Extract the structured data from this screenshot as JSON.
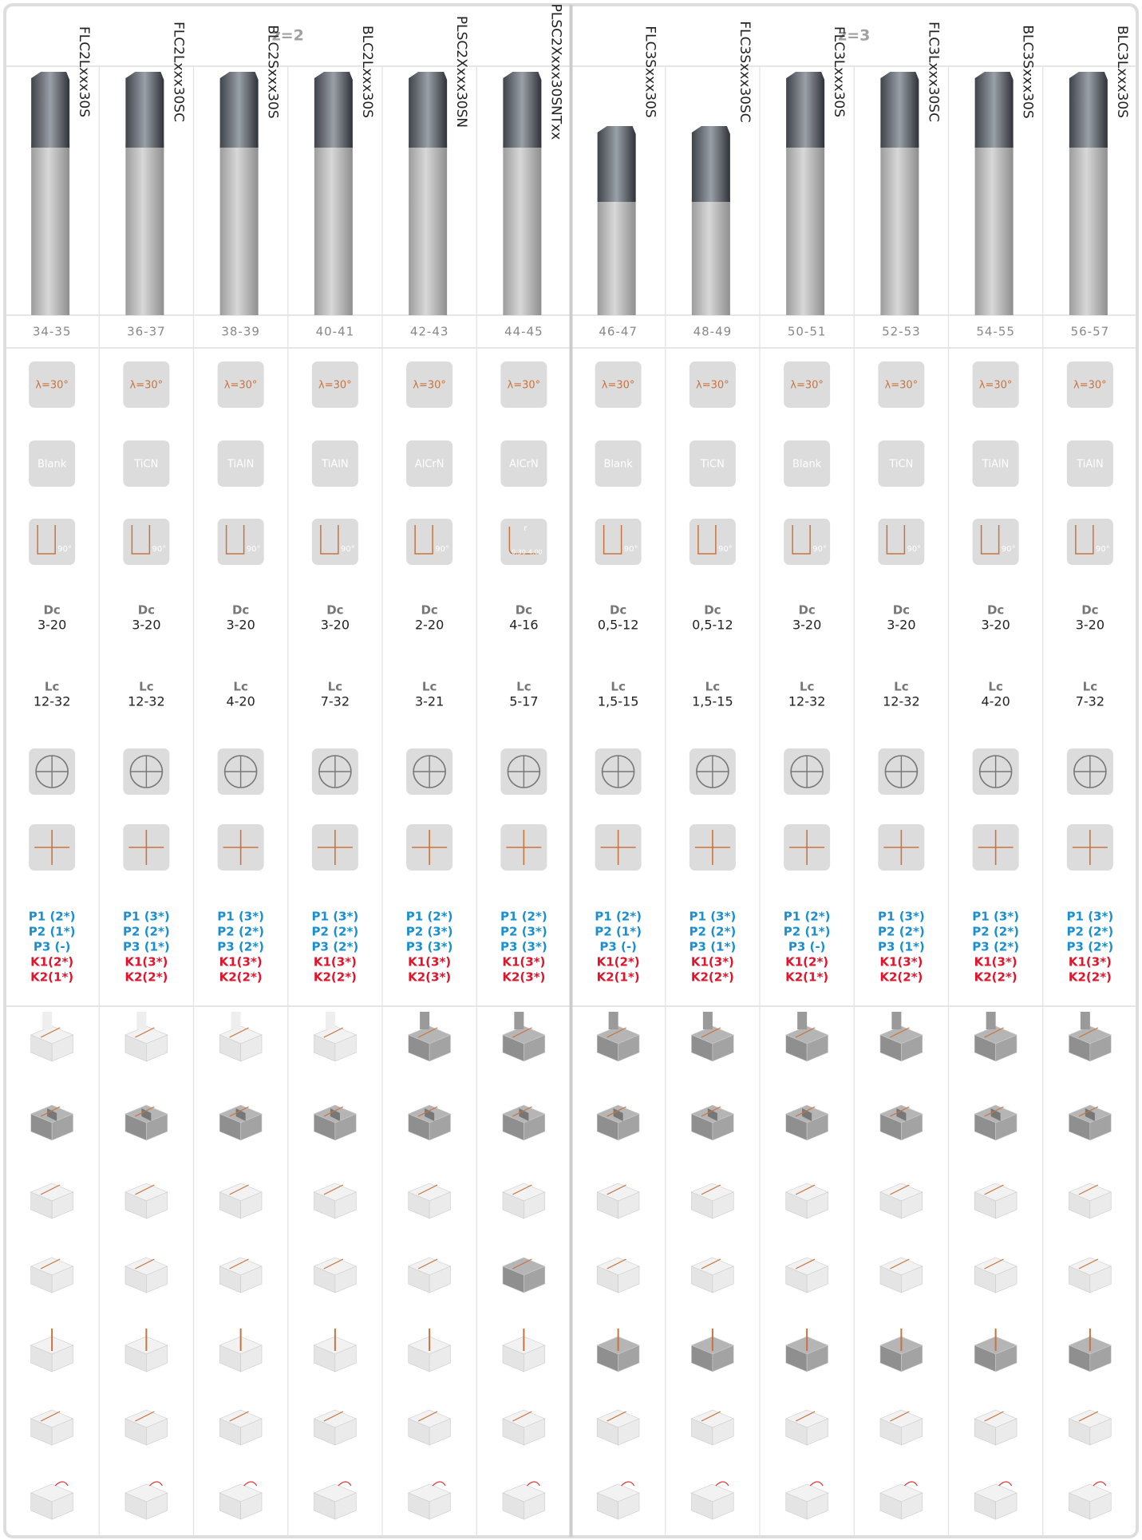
{
  "groups": [
    "z=2",
    "z=3"
  ],
  "labels": {
    "helix": "λ=30°",
    "dc": "Dc",
    "lc": "Lc",
    "corner": "90°"
  },
  "columns": [
    {
      "code": "FLC2Lxxx30S",
      "pages": "34-35",
      "coating": "Blank",
      "dc": "3-20",
      "lc": "12-32",
      "materials": [
        "P1 (2*)",
        "P2 (1*)",
        "P3 (-)",
        "K1(2*)",
        "K2(1*)"
      ],
      "ops": [
        false,
        true,
        false,
        false,
        false,
        false,
        false
      ]
    },
    {
      "code": "FLC2Lxxx30SC",
      "pages": "36-37",
      "coating": "TiCN",
      "dc": "3-20",
      "lc": "12-32",
      "materials": [
        "P1 (3*)",
        "P2 (2*)",
        "P3 (1*)",
        "K1(3*)",
        "K2(2*)"
      ],
      "ops": [
        false,
        true,
        false,
        false,
        false,
        false,
        false
      ]
    },
    {
      "code": "BLC2Sxxx30S",
      "pages": "38-39",
      "coating": "TiAlN",
      "dc": "3-20",
      "lc": "4-20",
      "materials": [
        "P1 (3*)",
        "P2 (2*)",
        "P3 (2*)",
        "K1(3*)",
        "K2(2*)"
      ],
      "ops": [
        false,
        true,
        false,
        false,
        false,
        false,
        false
      ]
    },
    {
      "code": "BLC2Lxxx30S",
      "pages": "40-41",
      "coating": "TiAlN",
      "dc": "3-20",
      "lc": "7-32",
      "materials": [
        "P1 (3*)",
        "P2 (2*)",
        "P3 (2*)",
        "K1(3*)",
        "K2(2*)"
      ],
      "ops": [
        false,
        true,
        false,
        false,
        false,
        false,
        false
      ]
    },
    {
      "code": "PLSC2Xxxx30SN",
      "pages": "42-43",
      "coating": "AlCrN",
      "dc": "2-20",
      "lc": "3-21",
      "materials": [
        "P1 (2*)",
        "P2 (3*)",
        "P3 (3*)",
        "K1(3*)",
        "K2(3*)"
      ],
      "ops": [
        true,
        true,
        false,
        false,
        false,
        false,
        false
      ]
    },
    {
      "code": "PLSC2Xxxx30SNTxx",
      "pages": "44-45",
      "coating": "AlCrN",
      "radius": {
        "label": "r",
        "range": "0,30-4,00"
      },
      "dc": "4-16",
      "lc": "5-17",
      "materials": [
        "P1 (2*)",
        "P2 (3*)",
        "P3 (3*)",
        "K1(3*)",
        "K2(3*)"
      ],
      "ops": [
        true,
        true,
        false,
        true,
        false,
        false,
        false
      ]
    },
    {
      "code": "FLC3Sxxx30S",
      "pages": "46-47",
      "coating": "Blank",
      "dc": "0,5-12",
      "lc": "1,5-15",
      "materials": [
        "P1 (2*)",
        "P2 (1*)",
        "P3 (-)",
        "K1(2*)",
        "K2(1*)"
      ],
      "ops": [
        true,
        true,
        false,
        false,
        true,
        false,
        false
      ]
    },
    {
      "code": "FLC3Sxxx30SC",
      "pages": "48-49",
      "coating": "TiCN",
      "dc": "0,5-12",
      "lc": "1,5-15",
      "materials": [
        "P1 (3*)",
        "P2 (2*)",
        "P3 (1*)",
        "K1(3*)",
        "K2(2*)"
      ],
      "ops": [
        true,
        true,
        false,
        false,
        true,
        false,
        false
      ]
    },
    {
      "code": "FLC3Lxxx30S",
      "pages": "50-51",
      "coating": "Blank",
      "dc": "3-20",
      "lc": "12-32",
      "materials": [
        "P1 (2*)",
        "P2 (1*)",
        "P3 (-)",
        "K1(2*)",
        "K2(1*)"
      ],
      "ops": [
        true,
        true,
        false,
        false,
        true,
        false,
        false
      ]
    },
    {
      "code": "FLC3Lxxx30SC",
      "pages": "52-53",
      "coating": "TiCN",
      "dc": "3-20",
      "lc": "12-32",
      "materials": [
        "P1 (3*)",
        "P2 (2*)",
        "P3 (1*)",
        "K1(3*)",
        "K2(2*)"
      ],
      "ops": [
        true,
        true,
        false,
        false,
        true,
        false,
        false
      ]
    },
    {
      "code": "BLC3Sxxx30S",
      "pages": "54-55",
      "coating": "TiAlN",
      "dc": "3-20",
      "lc": "4-20",
      "materials": [
        "P1 (3*)",
        "P2 (2*)",
        "P3 (2*)",
        "K1(3*)",
        "K2(2*)"
      ],
      "ops": [
        true,
        true,
        false,
        false,
        true,
        false,
        false
      ]
    },
    {
      "code": "BLC3Lxxx30S",
      "pages": "56-57",
      "coating": "TiAlN",
      "dc": "3-20",
      "lc": "7-32",
      "materials": [
        "P1 (3*)",
        "P2 (2*)",
        "P3 (2*)",
        "K1(3*)",
        "K2(2*)"
      ],
      "ops": [
        true,
        true,
        false,
        false,
        true,
        false,
        false
      ]
    }
  ]
}
